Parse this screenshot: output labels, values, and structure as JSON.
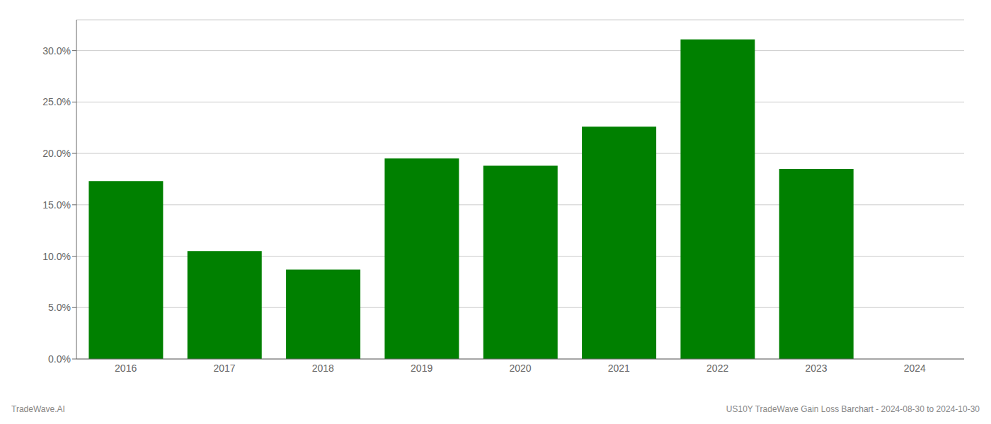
{
  "chart_data": {
    "type": "bar",
    "categories": [
      "2016",
      "2017",
      "2018",
      "2019",
      "2020",
      "2021",
      "2022",
      "2023",
      "2024"
    ],
    "values": [
      17.3,
      10.5,
      8.7,
      19.5,
      18.8,
      22.6,
      31.1,
      18.5,
      0.0
    ],
    "colors": [
      "#008000",
      "#008000",
      "#008000",
      "#008000",
      "#008000",
      "#008000",
      "#008000",
      "#008000",
      "#ffffff"
    ],
    "ylim": [
      0,
      33
    ],
    "yticks": [
      {
        "value": 0.0,
        "label": "0.0%"
      },
      {
        "value": 5.0,
        "label": "5.0%"
      },
      {
        "value": 10.0,
        "label": "10.0%"
      },
      {
        "value": 15.0,
        "label": "15.0%"
      },
      {
        "value": 20.0,
        "label": "20.0%"
      },
      {
        "value": 25.0,
        "label": "25.0%"
      },
      {
        "value": 30.0,
        "label": "30.0%"
      }
    ],
    "grid": true,
    "annotations": [
      "TradeWave.AI",
      "US10Y TradeWave Gain Loss Barchart - 2024-08-30 to 2024-10-30"
    ]
  }
}
